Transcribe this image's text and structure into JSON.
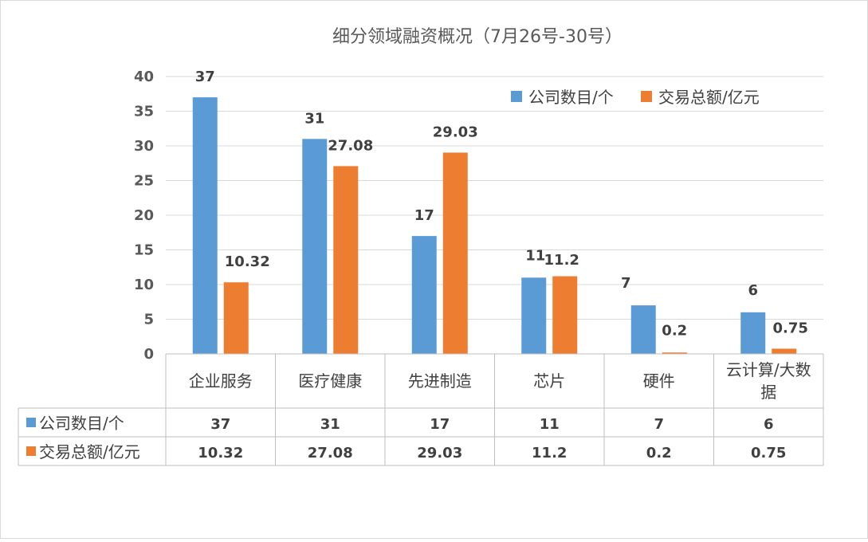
{
  "chart_data": {
    "type": "bar",
    "title": "细分领域融资概况（7月26号-30号）",
    "categories": [
      "企业服务",
      "医疗健康",
      "先进制造",
      "芯片",
      "硬件",
      "云计算/大数据"
    ],
    "series": [
      {
        "name": "公司数目/个",
        "values": [
          37,
          31,
          17,
          11,
          7,
          6
        ],
        "labels": [
          "37",
          "31",
          "17",
          "11",
          "7",
          "6"
        ],
        "color": "#5b9bd5"
      },
      {
        "name": "交易总额/亿元",
        "values": [
          10.32,
          27.08,
          29.03,
          11.2,
          0.2,
          0.75
        ],
        "labels": [
          "10.32",
          "27.08",
          "29.03",
          "11.2",
          "0.2",
          "0.75"
        ],
        "color": "#ed7d31"
      }
    ],
    "ylim": [
      0,
      40
    ],
    "yticks": [
      "0",
      "5",
      "10",
      "15",
      "20",
      "25",
      "30",
      "35",
      "40"
    ],
    "grid": true,
    "legend_position": "top-right",
    "data_table": true
  }
}
